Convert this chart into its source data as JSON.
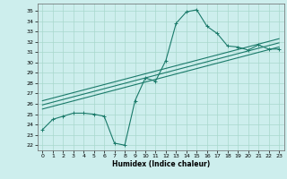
{
  "title": "",
  "xlabel": "Humidex (Indice chaleur)",
  "bg_color": "#cdeeed",
  "grid_color": "#a8d8cc",
  "line_color": "#1a7a6a",
  "xlim": [
    -0.5,
    23.5
  ],
  "ylim": [
    21.5,
    35.7
  ],
  "xticks": [
    0,
    1,
    2,
    3,
    4,
    5,
    6,
    7,
    8,
    9,
    10,
    11,
    12,
    13,
    14,
    15,
    16,
    17,
    18,
    19,
    20,
    21,
    22,
    23
  ],
  "yticks": [
    22,
    23,
    24,
    25,
    26,
    27,
    28,
    29,
    30,
    31,
    32,
    33,
    34,
    35
  ],
  "curve1_x": [
    0,
    1,
    2,
    3,
    4,
    5,
    6,
    7,
    8,
    9,
    10,
    11,
    12,
    13,
    14,
    15,
    16,
    17,
    18,
    19,
    20,
    21,
    22,
    23
  ],
  "curve1_y": [
    23.5,
    24.5,
    24.8,
    25.1,
    25.1,
    25.0,
    24.8,
    22.2,
    22.0,
    26.3,
    28.5,
    28.2,
    30.2,
    33.8,
    34.9,
    35.1,
    33.5,
    32.8,
    31.6,
    31.5,
    31.2,
    31.7,
    31.3,
    31.3
  ],
  "line2_x": [
    0,
    23
  ],
  "line2_y": [
    25.5,
    31.5
  ],
  "line3_x": [
    0,
    23
  ],
  "line3_y": [
    25.9,
    31.9
  ],
  "line4_x": [
    0,
    23
  ],
  "line4_y": [
    26.3,
    32.3
  ]
}
